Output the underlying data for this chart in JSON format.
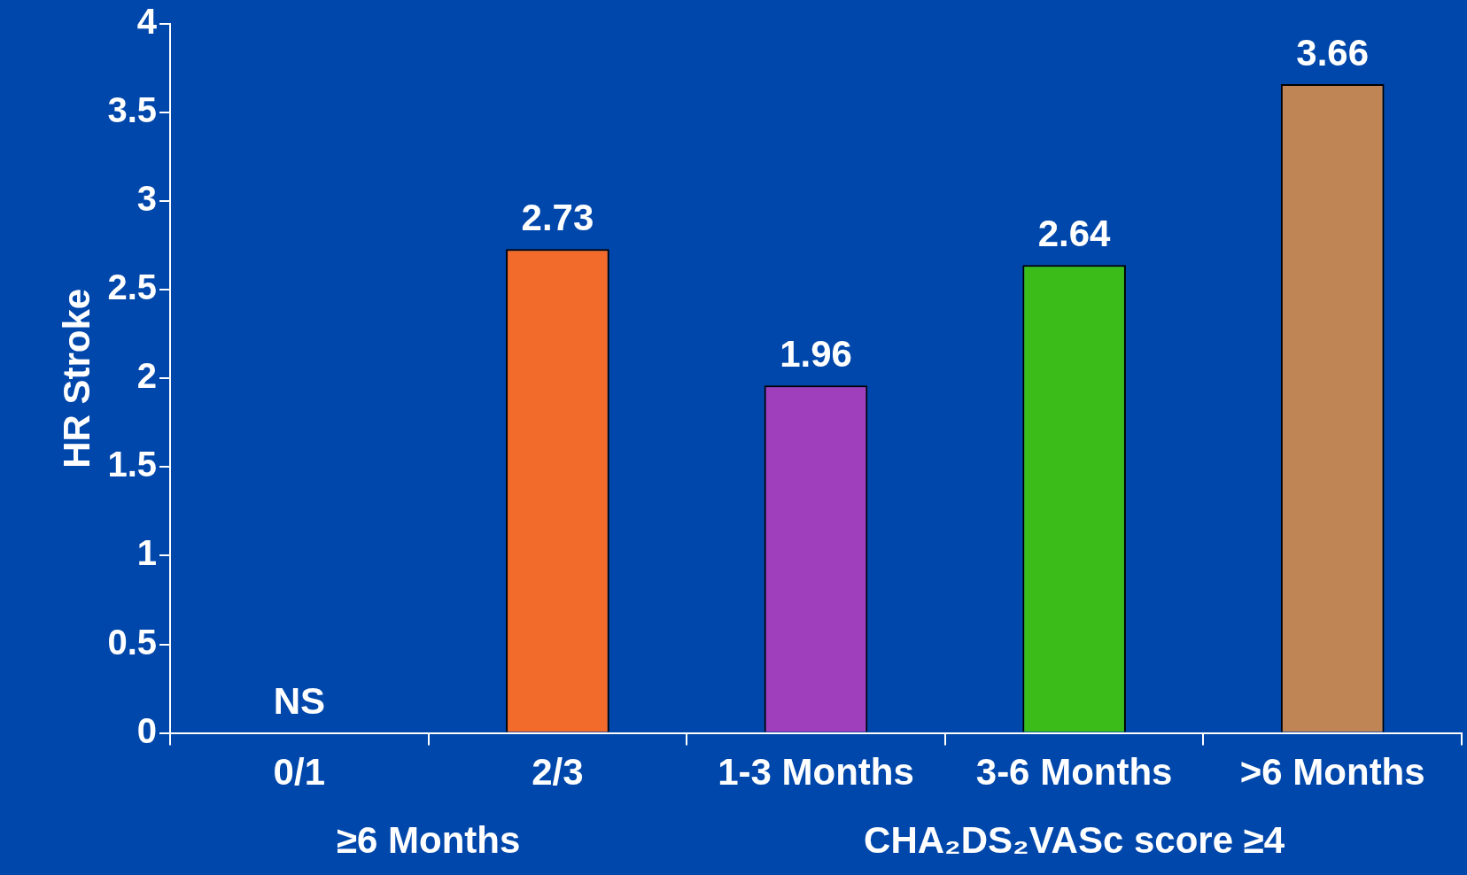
{
  "chart_data": {
    "type": "bar",
    "ylabel": "HR Stroke",
    "categories": [
      "0/1",
      "2/3",
      "1-3 Months",
      "3-6 Months",
      ">6 Months"
    ],
    "values": [
      null,
      2.73,
      1.96,
      2.64,
      3.66
    ],
    "value_labels": [
      "NS",
      "2.73",
      "1.96",
      "2.64",
      "3.66"
    ],
    "colors": [
      "#f26b2a",
      "#f26b2a",
      "#a03fbc",
      "#3cbc19",
      "#c08554"
    ],
    "ylim": [
      0,
      4
    ],
    "yticks": [
      0,
      0.5,
      1,
      1.5,
      2,
      2.5,
      3,
      3.5,
      4
    ],
    "grid": false,
    "legend": false,
    "annotations": [
      "≥6 Months",
      "CHA₂DS₂VASc score ≥4"
    ]
  }
}
